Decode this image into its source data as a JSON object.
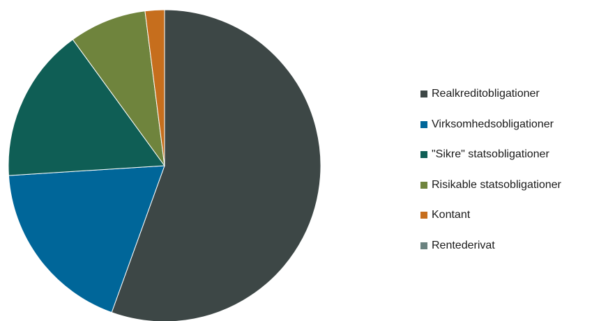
{
  "chart_data": {
    "type": "pie",
    "categories": [
      "Realkreditobligationer",
      "Virksomhedsobligationer",
      "\"Sikre\" statsobligationer",
      "Risikable statsobligationer",
      "Kontant",
      "Rentederivat"
    ],
    "values": [
      55.5,
      18.5,
      16.0,
      8.0,
      2.0,
      0.0
    ],
    "unit": "%",
    "colors": [
      "#3d4746",
      "#006699",
      "#0f5e55",
      "#6f843d",
      "#c66e1d",
      "#6b8380"
    ],
    "legend_position": "right",
    "start_angle_deg": 0,
    "direction": "clockwise"
  }
}
